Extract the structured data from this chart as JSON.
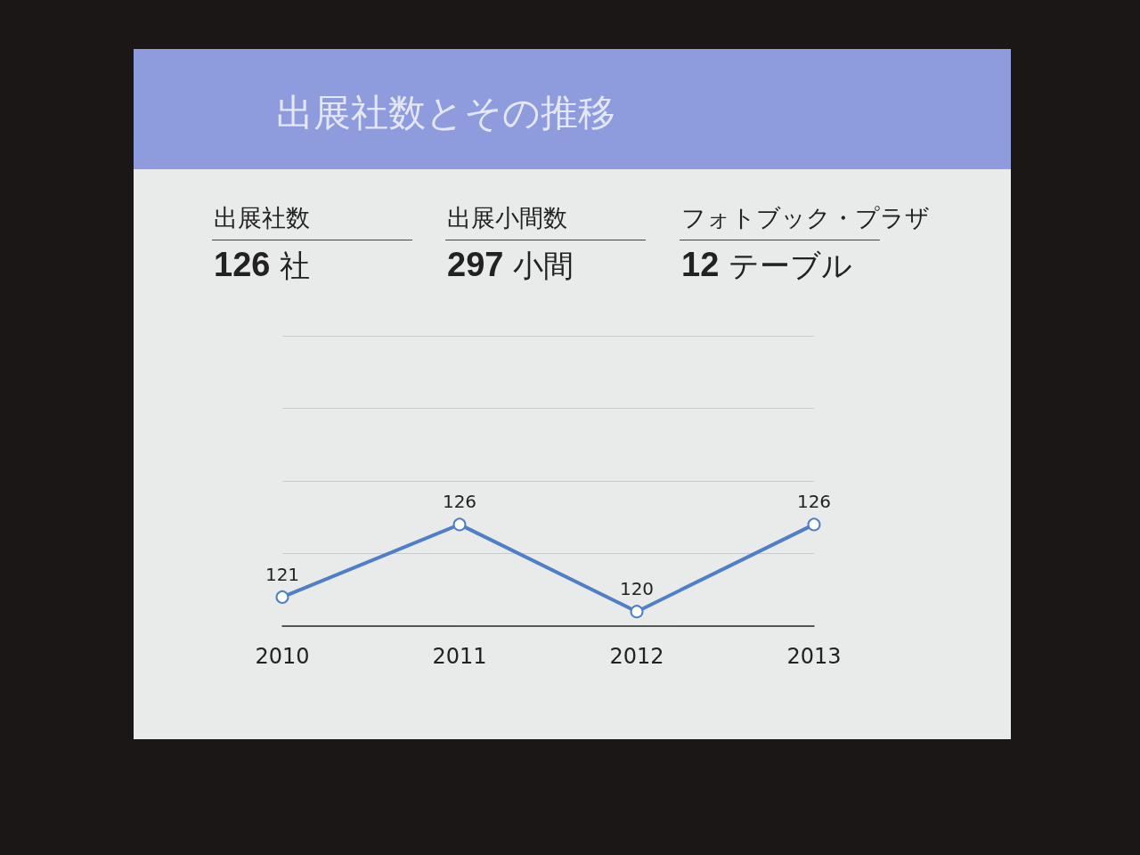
{
  "chart_data": [
    {
      "type": "other",
      "title": "出展社数とその推移",
      "annotations": [
        "出展社数",
        "126 社",
        "出展小間数",
        "297 小間",
        "フォトブック・プラザ",
        "12 テーブル"
      ]
    },
    {
      "type": "line",
      "categories": [
        "2010",
        "2011",
        "2012",
        "2013"
      ],
      "series": [
        {
          "color": "#4f7fc6",
          "values": [
            121,
            126,
            120,
            126
          ]
        }
      ],
      "ylim": [
        119,
        139
      ],
      "yticks": [
        {
          "value": 119,
          "label": null
        },
        {
          "value": 124,
          "label": null
        },
        {
          "value": 129,
          "label": null
        },
        {
          "value": 134,
          "label": null
        },
        {
          "value": 139,
          "label": null
        }
      ],
      "grid": "y",
      "tick_labels": "x",
      "marker": "circle",
      "line_style": "solid",
      "data_labels": true
    }
  ]
}
